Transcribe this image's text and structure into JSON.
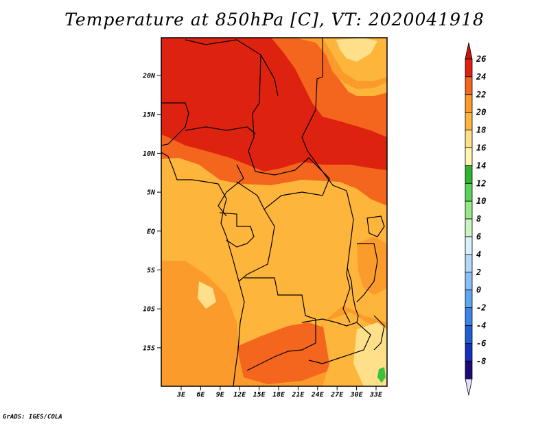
{
  "title": "Temperature at 850hPa [C], VT: 2020041918",
  "credit": "GrADS: IGES/COLA",
  "map": {
    "lat_labels": [
      "20N",
      "15N",
      "10N",
      "5N",
      "EQ",
      "5S",
      "10S",
      "15S"
    ],
    "lon_labels": [
      "3E",
      "6E",
      "9E",
      "12E",
      "15E",
      "18E",
      "21E",
      "24E",
      "27E",
      "30E",
      "33E"
    ],
    "fill_colors": {
      "t16_18": "#fee08a",
      "t18_20": "#fdb53b",
      "t20_22": "#fb9b2b",
      "t22_24": "#f4661e",
      "t24_26": "#de2210",
      "t12_14": "#3cc23c",
      "t14_16": "#fff5b0"
    }
  },
  "colorbar": {
    "labels": [
      "26",
      "24",
      "22",
      "20",
      "18",
      "16",
      "14",
      "12",
      "10",
      "8",
      "6",
      "4",
      "2",
      "0",
      "-2",
      "-4",
      "-6",
      "-8"
    ],
    "colors": [
      "#1a0a7a",
      "#1530b8",
      "#1e5fd6",
      "#3a86e8",
      "#5fa6f0",
      "#8ac0f5",
      "#b4d8fa",
      "#daf0fc",
      "#c8f5c0",
      "#96e88a",
      "#5ad35a",
      "#2eb42e",
      "#fff5b0",
      "#fee08a",
      "#fdb53b",
      "#fb9b2b",
      "#f4661e",
      "#de2210"
    ],
    "under_color": "#e0e0ff",
    "over_color": "#c8140a"
  }
}
